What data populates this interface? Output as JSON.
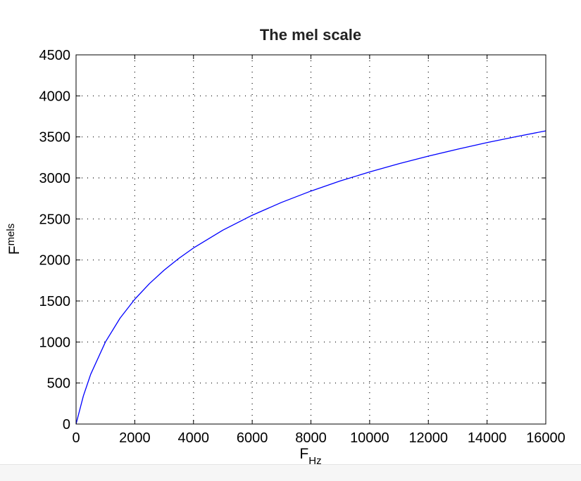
{
  "chart_data": {
    "type": "line",
    "title": "The mel scale",
    "xlabel": {
      "main": "F",
      "sub": "Hz"
    },
    "ylabel": {
      "main": "F",
      "sub": "mels"
    },
    "xlim": [
      0,
      16000
    ],
    "ylim": [
      0,
      4500
    ],
    "xticks": [
      0,
      2000,
      4000,
      6000,
      8000,
      10000,
      12000,
      14000,
      16000
    ],
    "yticks": [
      0,
      500,
      1000,
      1500,
      2000,
      2500,
      3000,
      3500,
      4000,
      4500
    ],
    "grid": true,
    "series": [
      {
        "color": "#0000ff",
        "x": [
          0,
          250,
          500,
          1000,
          1500,
          2000,
          2500,
          3000,
          3500,
          4000,
          5000,
          6000,
          7000,
          8000,
          9000,
          10000,
          11000,
          12000,
          13000,
          14000,
          15000,
          16000
        ],
        "y": [
          0,
          344,
          607,
          1000,
          1291,
          1521,
          1712,
          1876,
          2019,
          2146,
          2363,
          2545,
          2702,
          2840,
          2963,
          3073,
          3174,
          3266,
          3351,
          3430,
          3504,
          3573
        ]
      }
    ]
  },
  "colors": {
    "line": "#0000ff",
    "grid": "#000000",
    "footer": "#f6f6f6"
  }
}
